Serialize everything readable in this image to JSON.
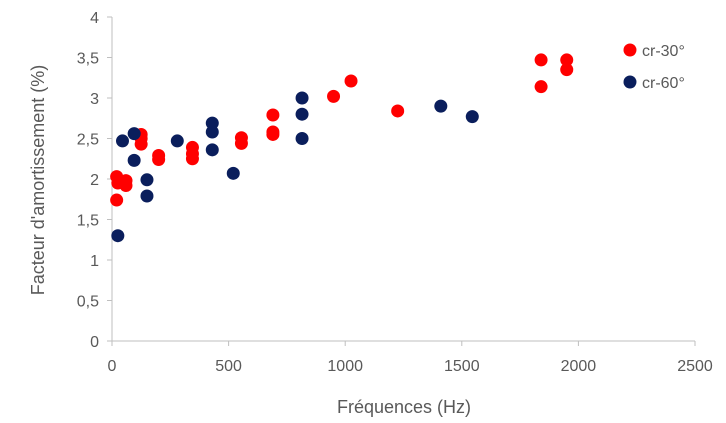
{
  "chart_data": {
    "type": "scatter",
    "title": "",
    "xlabel": "Fréquences (Hz)",
    "ylabel": "Facteur d'amortissement (%)",
    "xlim": [
      0,
      2500
    ],
    "ylim": [
      0,
      4
    ],
    "x_ticks": [
      0,
      500,
      1000,
      1500,
      2000,
      2500
    ],
    "y_ticks": [
      0,
      0.5,
      1,
      1.5,
      2,
      2.5,
      3,
      3.5,
      4
    ],
    "x_tick_labels": [
      "0",
      "500",
      "1000",
      "1500",
      "2000",
      "2500"
    ],
    "y_tick_labels": [
      "0",
      "0,5",
      "1",
      "1,5",
      "2",
      "2,5",
      "3",
      "3,5",
      "4"
    ],
    "grid": false,
    "legend_position": "top-right",
    "series": [
      {
        "name": "cr-30°",
        "color": "#ff0000",
        "points": [
          {
            "x": 20,
            "y": 2.03
          },
          {
            "x": 25,
            "y": 1.95
          },
          {
            "x": 20,
            "y": 1.74
          },
          {
            "x": 60,
            "y": 1.98
          },
          {
            "x": 60,
            "y": 1.92
          },
          {
            "x": 125,
            "y": 2.55
          },
          {
            "x": 125,
            "y": 2.5
          },
          {
            "x": 125,
            "y": 2.43
          },
          {
            "x": 200,
            "y": 2.29
          },
          {
            "x": 200,
            "y": 2.24
          },
          {
            "x": 345,
            "y": 2.39
          },
          {
            "x": 345,
            "y": 2.31
          },
          {
            "x": 345,
            "y": 2.25
          },
          {
            "x": 555,
            "y": 2.51
          },
          {
            "x": 555,
            "y": 2.44
          },
          {
            "x": 690,
            "y": 2.79
          },
          {
            "x": 690,
            "y": 2.58
          },
          {
            "x": 690,
            "y": 2.55
          },
          {
            "x": 950,
            "y": 3.02
          },
          {
            "x": 1025,
            "y": 3.21
          },
          {
            "x": 1225,
            "y": 2.84
          },
          {
            "x": 1840,
            "y": 3.47
          },
          {
            "x": 1840,
            "y": 3.14
          },
          {
            "x": 1950,
            "y": 3.47
          },
          {
            "x": 1950,
            "y": 3.35
          }
        ]
      },
      {
        "name": "cr-60°",
        "color": "#0a1e5c",
        "points": [
          {
            "x": 25,
            "y": 1.3
          },
          {
            "x": 45,
            "y": 2.47
          },
          {
            "x": 95,
            "y": 2.56
          },
          {
            "x": 95,
            "y": 2.23
          },
          {
            "x": 150,
            "y": 1.99
          },
          {
            "x": 150,
            "y": 1.79
          },
          {
            "x": 280,
            "y": 2.47
          },
          {
            "x": 430,
            "y": 2.69
          },
          {
            "x": 430,
            "y": 2.58
          },
          {
            "x": 430,
            "y": 2.36
          },
          {
            "x": 520,
            "y": 2.07
          },
          {
            "x": 815,
            "y": 3.0
          },
          {
            "x": 815,
            "y": 2.8
          },
          {
            "x": 815,
            "y": 2.5
          },
          {
            "x": 1410,
            "y": 2.9
          },
          {
            "x": 1545,
            "y": 2.77
          }
        ]
      }
    ]
  }
}
